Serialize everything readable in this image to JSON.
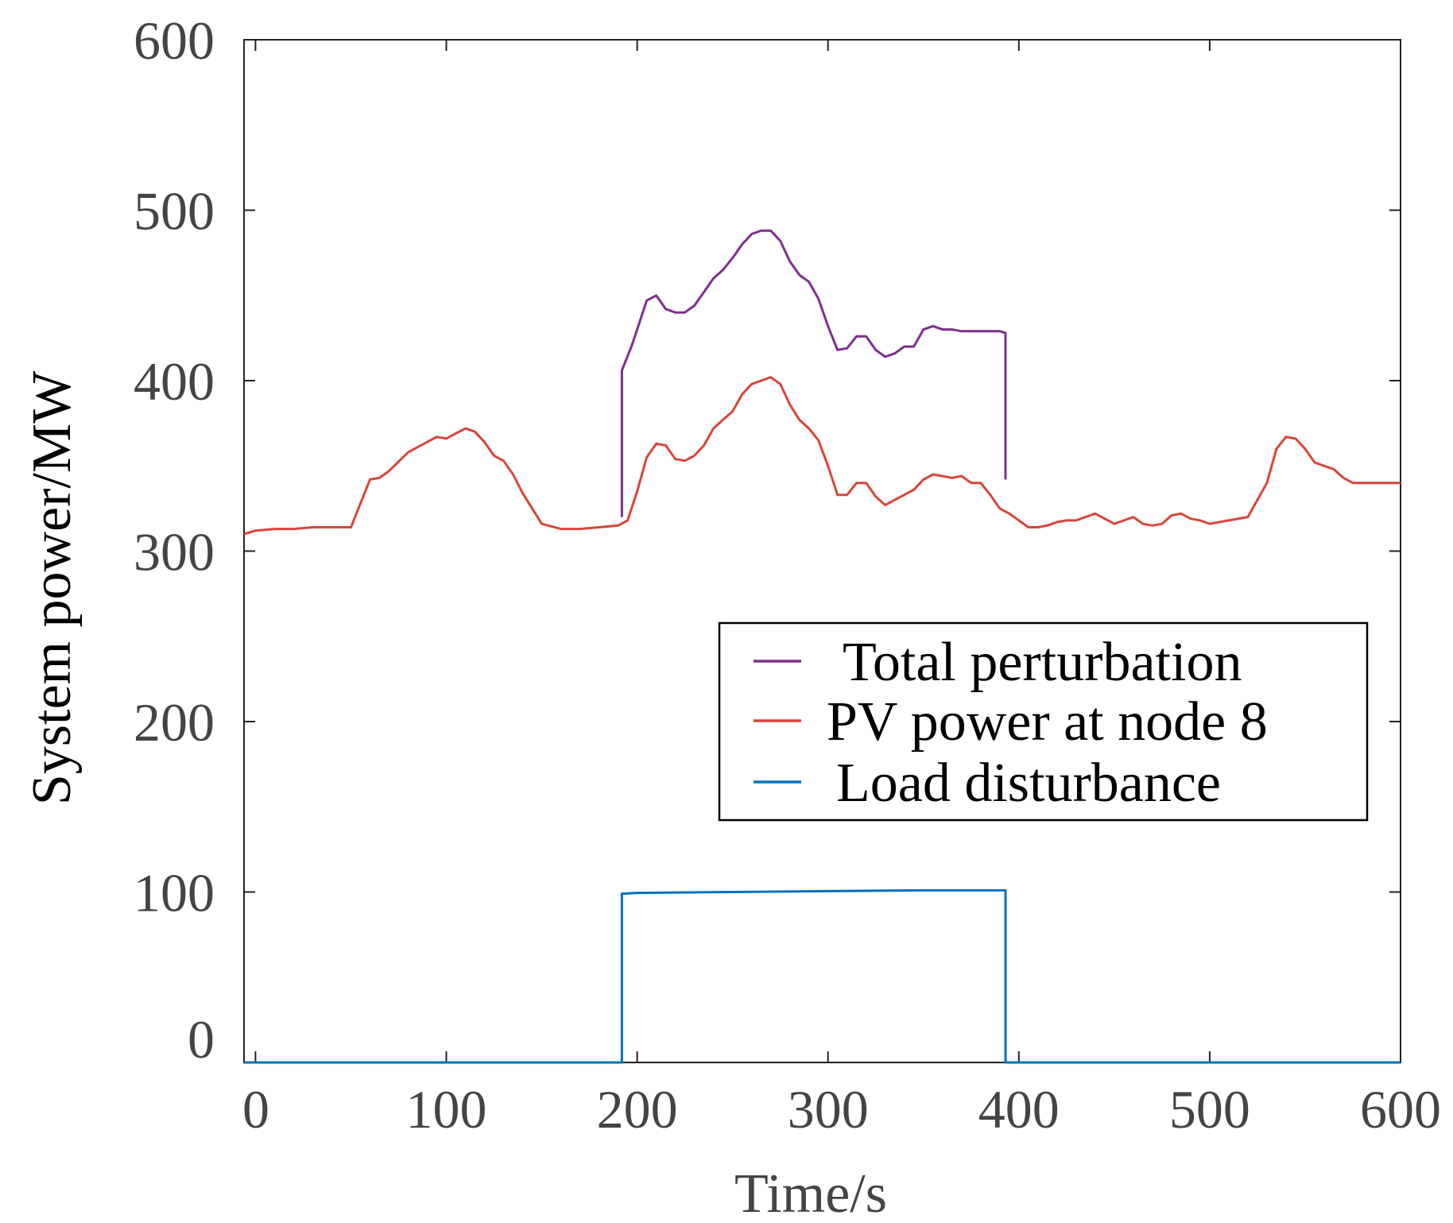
{
  "chart_data": {
    "type": "line",
    "title": "",
    "xlabel": "Time/s",
    "ylabel": "System power/MW",
    "xlim": [
      -6,
      600
    ],
    "ylim": [
      0,
      600
    ],
    "xticks": [
      0,
      100,
      200,
      300,
      400,
      500,
      600
    ],
    "yticks": [
      0,
      100,
      200,
      300,
      400,
      500,
      600
    ],
    "grid": false,
    "legend_position": "center-right",
    "series": [
      {
        "name": "Total perturbation",
        "color": "#7E2F8E",
        "x": [
          192,
          192,
          197,
          200,
          205,
          210,
          215,
          220,
          225,
          230,
          235,
          240,
          245,
          250,
          255,
          260,
          265,
          270,
          275,
          280,
          285,
          290,
          295,
          300,
          305,
          310,
          315,
          320,
          325,
          330,
          335,
          340,
          345,
          350,
          355,
          360,
          365,
          370,
          375,
          380,
          385,
          390,
          393,
          393
        ],
        "y": [
          320,
          406,
          420,
          430,
          447,
          450,
          442,
          440,
          440,
          444,
          452,
          460,
          465,
          472,
          480,
          486,
          488,
          488,
          482,
          470,
          462,
          458,
          448,
          432,
          418,
          419,
          426,
          426,
          418,
          414,
          416,
          420,
          420,
          430,
          432,
          430,
          430,
          429,
          429,
          429,
          429,
          429,
          428,
          342
        ]
      },
      {
        "name": "PV power at node 8",
        "color": "#D9453A",
        "x": [
          -6,
          0,
          10,
          20,
          30,
          40,
          50,
          55,
          60,
          65,
          70,
          80,
          90,
          95,
          100,
          105,
          110,
          115,
          120,
          125,
          130,
          135,
          140,
          150,
          160,
          170,
          180,
          190,
          195,
          200,
          205,
          210,
          215,
          220,
          225,
          230,
          235,
          240,
          245,
          250,
          255,
          260,
          265,
          270,
          275,
          280,
          285,
          290,
          295,
          300,
          305,
          310,
          315,
          320,
          325,
          330,
          335,
          340,
          345,
          350,
          355,
          360,
          365,
          370,
          375,
          380,
          385,
          390,
          395,
          400,
          405,
          410,
          415,
          420,
          425,
          430,
          440,
          450,
          455,
          460,
          465,
          470,
          475,
          480,
          485,
          490,
          495,
          500,
          505,
          510,
          520,
          530,
          535,
          540,
          545,
          550,
          555,
          560,
          565,
          570,
          575,
          580,
          585,
          590,
          595,
          600
        ],
        "y": [
          310,
          312,
          313,
          313,
          314,
          314,
          314,
          328,
          342,
          343,
          347,
          358,
          364,
          367,
          366,
          369,
          372,
          370,
          364,
          356,
          353,
          345,
          334,
          316,
          313,
          313,
          314,
          315,
          318,
          335,
          355,
          363,
          362,
          354,
          353,
          356,
          362,
          372,
          377,
          382,
          392,
          398,
          400,
          402,
          398,
          386,
          377,
          372,
          365,
          350,
          333,
          333,
          340,
          340,
          332,
          327,
          330,
          333,
          336,
          342,
          345,
          344,
          343,
          344,
          340,
          340,
          333,
          325,
          322,
          318,
          314,
          314,
          315,
          317,
          318,
          318,
          322,
          316,
          318,
          320,
          316,
          315,
          316,
          321,
          322,
          319,
          318,
          316,
          317,
          318,
          320,
          340,
          360,
          367,
          366,
          360,
          352,
          350,
          348,
          343,
          340,
          340,
          340,
          340,
          340,
          340
        ],
        "note": "series shown from x=-6 to ~600"
      },
      {
        "name": "Load disturbance",
        "color": "#0072BD",
        "x": [
          -6,
          192,
          192,
          200,
          250,
          300,
          350,
          393,
          393,
          600
        ],
        "y": [
          0,
          0,
          99,
          99.5,
          100,
          100.5,
          101,
          101,
          0,
          0
        ]
      }
    ]
  }
}
